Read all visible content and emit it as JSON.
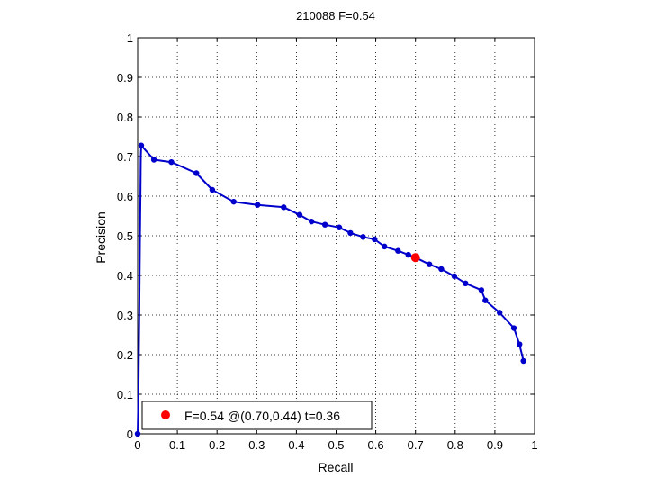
{
  "chart_data": {
    "type": "line",
    "title": "210088 F=0.54",
    "xlabel": "Recall",
    "ylabel": "Precision",
    "xlim": [
      0,
      1
    ],
    "ylim": [
      0,
      1
    ],
    "grid": true,
    "xticks": [
      "0",
      "0.1",
      "0.2",
      "0.3",
      "0.4",
      "0.5",
      "0.6",
      "0.7",
      "0.8",
      "0.9",
      "1"
    ],
    "yticks": [
      "0",
      "0.1",
      "0.2",
      "0.3",
      "0.4",
      "0.5",
      "0.6",
      "0.7",
      "0.8",
      "0.9",
      "1"
    ],
    "series": [
      {
        "color": "#0000cc",
        "x": [
          0.0,
          0.002,
          0.003,
          0.004,
          0.005,
          0.006,
          0.007,
          0.008,
          0.009,
          0.041,
          0.085,
          0.148,
          0.188,
          0.242,
          0.302,
          0.368,
          0.408,
          0.438,
          0.472,
          0.508,
          0.536,
          0.568,
          0.597,
          0.622,
          0.656,
          0.682,
          0.7,
          0.735,
          0.765,
          0.798,
          0.826,
          0.866,
          0.876,
          0.912,
          0.948,
          0.962,
          0.972
        ],
        "y": [
          0.0,
          0.1,
          0.2,
          0.3,
          0.4,
          0.5,
          0.6,
          0.7,
          0.728,
          0.692,
          0.686,
          0.658,
          0.616,
          0.586,
          0.578,
          0.572,
          0.553,
          0.536,
          0.528,
          0.521,
          0.507,
          0.497,
          0.491,
          0.473,
          0.462,
          0.452,
          0.445,
          0.428,
          0.416,
          0.398,
          0.38,
          0.363,
          0.337,
          0.306,
          0.267,
          0.226,
          0.184
        ]
      }
    ],
    "marker_x": [
      0.0,
      0.009,
      0.041,
      0.085,
      0.148,
      0.188,
      0.242,
      0.302,
      0.368,
      0.408,
      0.438,
      0.472,
      0.508,
      0.536,
      0.568,
      0.597,
      0.622,
      0.656,
      0.682,
      0.735,
      0.765,
      0.798,
      0.826,
      0.866,
      0.876,
      0.912,
      0.948,
      0.962,
      0.972
    ],
    "marker_y": [
      0.0,
      0.728,
      0.692,
      0.686,
      0.658,
      0.616,
      0.586,
      0.578,
      0.572,
      0.553,
      0.536,
      0.528,
      0.521,
      0.507,
      0.497,
      0.491,
      0.473,
      0.462,
      0.452,
      0.428,
      0.416,
      0.398,
      0.38,
      0.363,
      0.337,
      0.306,
      0.267,
      0.226,
      0.184
    ],
    "highlight": {
      "x": 0.7,
      "y": 0.445,
      "color": "#ff0000"
    },
    "legend": {
      "position": "bottom-left",
      "label": "F=0.54 @(0.70,0.44) t=0.36"
    }
  }
}
